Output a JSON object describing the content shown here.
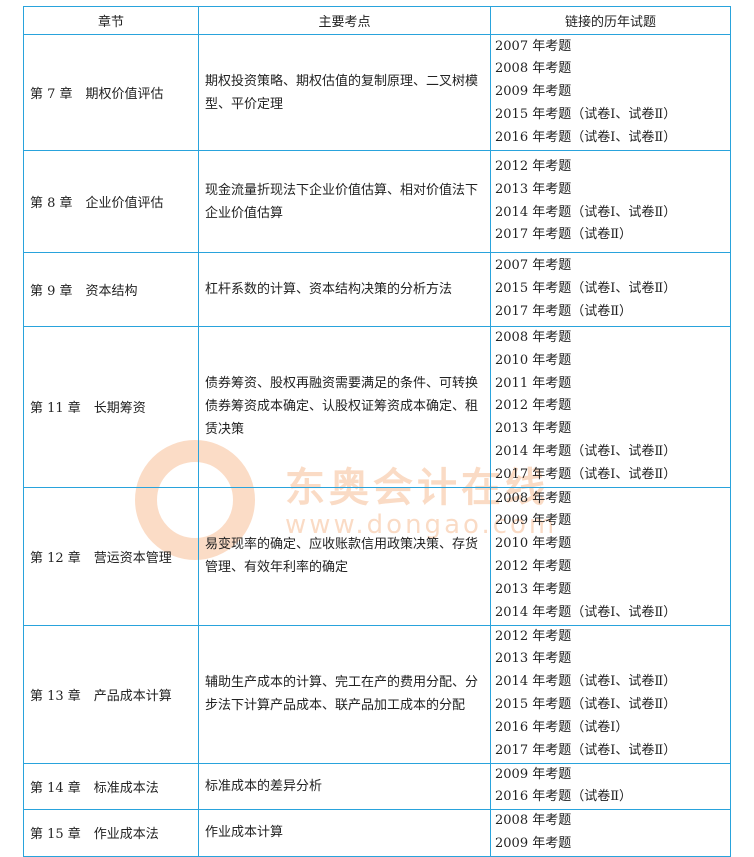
{
  "headers": [
    "章节",
    "主要考点",
    "链接的历年试题"
  ],
  "rows": [
    {
      "chapter": "第 7 章　期权价值评估",
      "points": "期权投资策略、期权估值的复制原理、二叉树模型、平价定理",
      "exams": [
        "2007 年考题",
        "2008 年考题",
        "2009 年考题",
        "2015 年考题（试卷Ⅰ、试卷Ⅱ）",
        "2016 年考题（试卷Ⅰ、试卷Ⅱ）"
      ]
    },
    {
      "chapter": "第 8 章　企业价值评估",
      "points": "现金流量折现法下企业价值估算、相对价值法下企业价值估算",
      "exams": [
        "2012 年考题",
        "2013 年考题",
        "2014 年考题（试卷Ⅰ、试卷Ⅱ）",
        "2017 年考题（试卷Ⅱ）"
      ]
    },
    {
      "chapter": "第 9 章　资本结构",
      "points": "杠杆系数的计算、资本结构决策的分析方法",
      "exams": [
        "2007 年考题",
        "2015 年考题（试卷Ⅰ、试卷Ⅱ）",
        "2017 年考题（试卷Ⅱ）"
      ]
    },
    {
      "chapter": "第 11 章　长期筹资",
      "points": "债券筹资、股权再融资需要满足的条件、可转换债券筹资成本确定、认股权证筹资成本确定、租赁决策",
      "exams": [
        "2008 年考题",
        "2010 年考题",
        "2011 年考题",
        "2012 年考题",
        "2013 年考题",
        "2014 年考题（试卷Ⅰ、试卷Ⅱ）",
        "2017 年考题（试卷Ⅰ、试卷Ⅱ）"
      ]
    },
    {
      "chapter": "第 12 章　营运资本管理",
      "points": "易变现率的确定、应收账款信用政策决策、存货管理、有效年利率的确定",
      "exams": [
        "2008 年考题",
        "2009 年考题",
        "2010 年考题",
        "2012 年考题",
        "2013 年考题",
        "2014 年考题（试卷Ⅰ、试卷Ⅱ）"
      ]
    },
    {
      "chapter": "第 13 章　产品成本计算",
      "points": "辅助生产成本的计算、完工在产的费用分配、分步法下计算产品成本、联产品加工成本的分配",
      "exams": [
        "2012 年考题",
        "2013 年考题",
        "2014 年考题（试卷Ⅰ、试卷Ⅱ）",
        "2015 年考题（试卷Ⅰ、试卷Ⅱ）",
        "2016 年考题（试卷Ⅰ）",
        "2017 年考题（试卷Ⅰ、试卷Ⅱ）"
      ]
    },
    {
      "chapter": "第 14 章　标准成本法",
      "points": "标准成本的差异分析",
      "exams": [
        "2009 年考题",
        "2016 年考题（试卷Ⅱ）"
      ]
    },
    {
      "chapter": "第 15 章　作业成本法",
      "points": "作业成本计算",
      "exams": [
        "2008 年考题",
        "2009 年考题"
      ]
    }
  ],
  "watermark": {
    "name": "东奥会计在线",
    "url": "www.dongao.com"
  },
  "colors": {
    "border": "#29a3dc",
    "watermark": "#f39a5c"
  }
}
